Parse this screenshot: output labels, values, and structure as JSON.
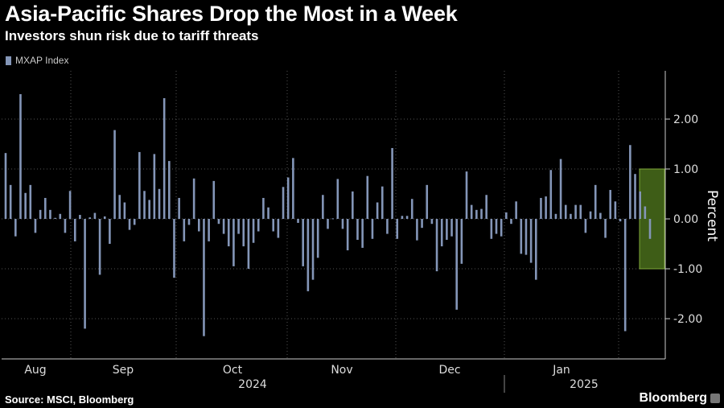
{
  "header": {
    "title": "Asia-Pacific Shares Drop the Most in a Week",
    "subtitle": "Investors shun risk due to tariff threats"
  },
  "footer": {
    "source": "Source: MSCI, Bloomberg",
    "brand": "Bloomberg"
  },
  "colors": {
    "bar": "#8496b8",
    "highlight_fill": "#3e5d17",
    "highlight_stroke": "#7fa83a",
    "grid": "#555555"
  },
  "chart_data": {
    "type": "bar",
    "legend": [
      "MXAP Index"
    ],
    "ylabel": "Percent",
    "ylim": [
      -2.8,
      2.9
    ],
    "yticks": [
      "2.00",
      "1.00",
      "0.00",
      "-1.00",
      "-2.00"
    ],
    "ytick_values": [
      2,
      1,
      0,
      -1,
      -2
    ],
    "months": [
      "Aug",
      "Sep",
      "Oct",
      "Nov",
      "Dec",
      "Jan"
    ],
    "years": [
      "2024",
      "2025"
    ],
    "highlight_range": [
      -1.0,
      1.0
    ],
    "grid": true,
    "series": [
      {
        "values": [
          1.32,
          0.68,
          -0.35,
          2.5,
          0.52,
          0.68,
          -0.28,
          0.18,
          0.42,
          0.18,
          0.02,
          0.1,
          -0.28,
          0.56,
          -0.45,
          0.08,
          -2.2,
          0.03,
          0.12,
          -1.12,
          0.05,
          -0.5,
          1.78,
          0.48,
          0.33,
          -0.22,
          -0.12,
          1.34,
          0.56,
          0.38,
          1.3,
          0.6,
          2.42,
          1.16,
          -1.18,
          0.42,
          -0.45,
          -0.12,
          0.81,
          -0.25,
          -2.35,
          -0.45,
          0.76,
          -0.1,
          -0.3,
          -0.55,
          -0.95,
          -0.3,
          -0.55,
          -1.0,
          -0.48,
          -0.25,
          0.42,
          0.23,
          -0.25,
          -0.38,
          0.64,
          0.83,
          1.22,
          -0.08,
          -0.95,
          -1.45,
          -1.22,
          -0.78,
          0.48,
          -0.2,
          0.01,
          0.8,
          -0.2,
          -0.63,
          0.55,
          -0.42,
          -0.58,
          0.86,
          -0.4,
          0.33,
          0.65,
          -0.3,
          1.42,
          -0.4,
          0.06,
          0.06,
          0.4,
          -0.43,
          -0.18,
          0.68,
          -0.1,
          -1.05,
          -0.55,
          -0.42,
          -0.35,
          -1.82,
          -0.9,
          0.95,
          0.28,
          0.18,
          0.2,
          0.48,
          -0.4,
          -0.3,
          -0.35,
          0.13,
          -0.1,
          0.35,
          -0.7,
          -0.72,
          -0.88,
          -1.22,
          0.42,
          0.45,
          0.98,
          0.1,
          1.2,
          0.28,
          0.1,
          0.28,
          0.28,
          -0.28,
          0.15,
          0.68,
          0.12,
          -0.38,
          0.58,
          0.35,
          -0.05,
          -2.25,
          1.48,
          0.9,
          0.55,
          0.25,
          -0.4
        ]
      }
    ]
  }
}
